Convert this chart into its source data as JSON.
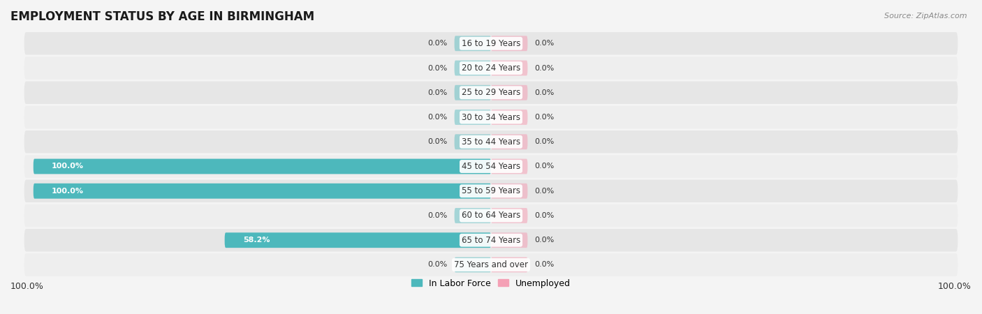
{
  "title": "EMPLOYMENT STATUS BY AGE IN BIRMINGHAM",
  "source": "Source: ZipAtlas.com",
  "categories": [
    "16 to 19 Years",
    "20 to 24 Years",
    "25 to 29 Years",
    "30 to 34 Years",
    "35 to 44 Years",
    "45 to 54 Years",
    "55 to 59 Years",
    "60 to 64 Years",
    "65 to 74 Years",
    "75 Years and over"
  ],
  "labor_force": [
    0.0,
    0.0,
    0.0,
    0.0,
    0.0,
    100.0,
    100.0,
    0.0,
    58.2,
    0.0
  ],
  "unemployed": [
    0.0,
    0.0,
    0.0,
    0.0,
    0.0,
    0.0,
    0.0,
    0.0,
    0.0,
    0.0
  ],
  "labor_force_color": "#4db8bc",
  "unemployed_color": "#f4a0b5",
  "row_bg_color": "#e8e8e8",
  "row_bg_alt": "#f0f0f0",
  "fig_bg_color": "#f4f4f4",
  "label_dark": "#333333",
  "label_white": "#ffffff",
  "xlim_left": -100,
  "xlim_right": 100,
  "stub_size": 8,
  "legend_labor": "In Labor Force",
  "legend_unemployed": "Unemployed",
  "title_fontsize": 12,
  "source_fontsize": 8,
  "cat_fontsize": 8.5,
  "val_fontsize": 8,
  "axis_label_fontsize": 9,
  "bar_height": 0.62
}
